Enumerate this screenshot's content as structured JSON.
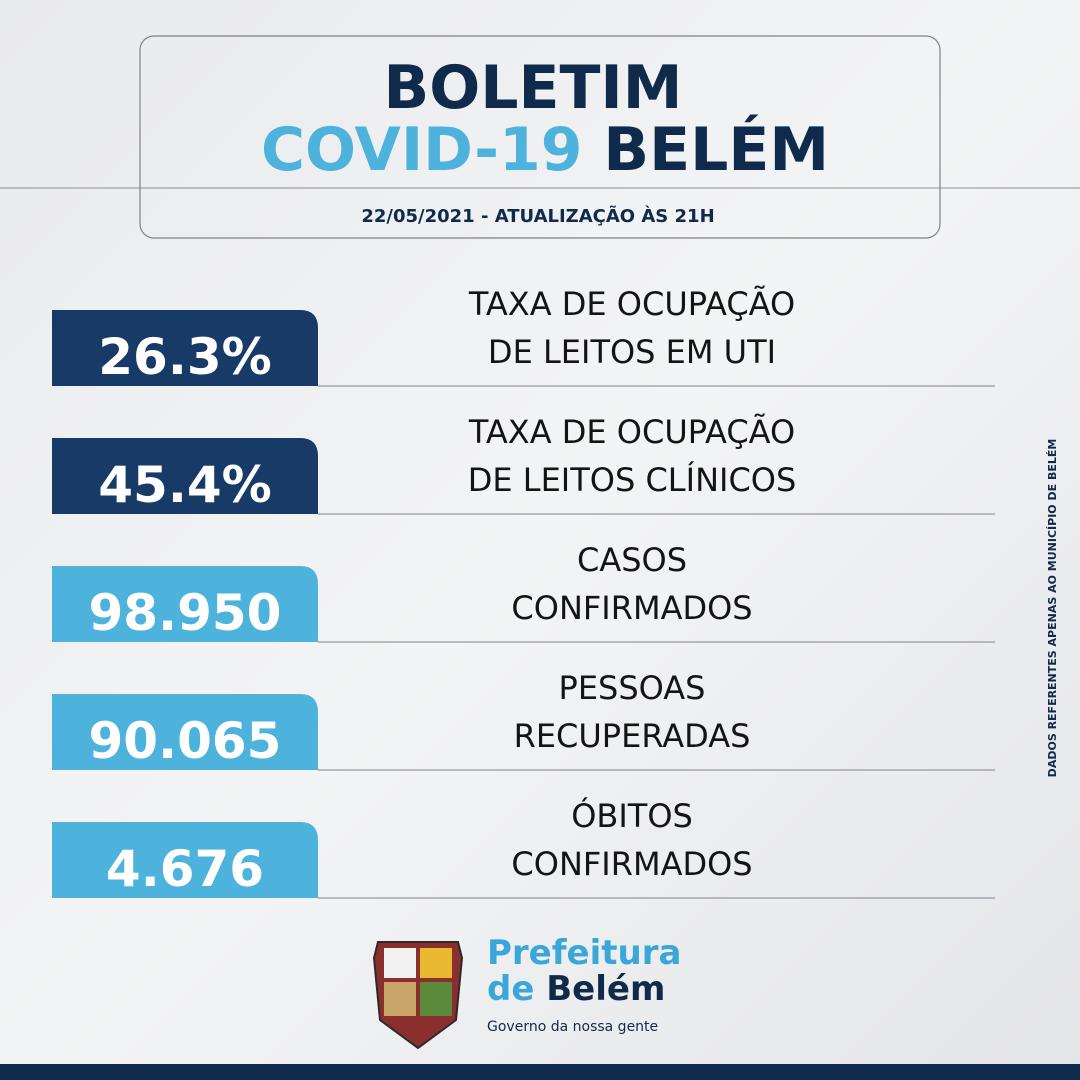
{
  "header": {
    "title_line1": "BOLETIM",
    "title_line2_highlight": "COVID-19",
    "title_line2_rest": "BELÉM",
    "date": "22/05/2021 - ATUALIZAÇÃO ÀS 21H"
  },
  "items": [
    {
      "value": "26.3%",
      "label_lines": [
        "TAXA DE OCUPAÇÃO",
        "DE LEITOS EM UTI"
      ]
    },
    {
      "value": "45.4%",
      "label_lines": [
        "TAXA DE OCUPAÇÃO",
        "DE LEITOS CLÍNICOS"
      ]
    },
    {
      "value": "98.950",
      "label_lines": [
        "CASOS",
        "CONFIRMADOS"
      ]
    },
    {
      "value": "90.065",
      "label_lines": [
        "PESSOAS",
        "RECUPERADAS"
      ]
    },
    {
      "value": "4.676",
      "label_lines": [
        "ÓBITOS",
        "CONFIRMADOS"
      ]
    }
  ],
  "side_note": "DADOS REFERENTES APENAS AO MUNICÍPIO DE BELÉM",
  "logo": {
    "line1": "Prefeitura",
    "line2_prefix": "de",
    "line2_name": "Belém",
    "tagline": "Governo da nossa gente"
  }
}
